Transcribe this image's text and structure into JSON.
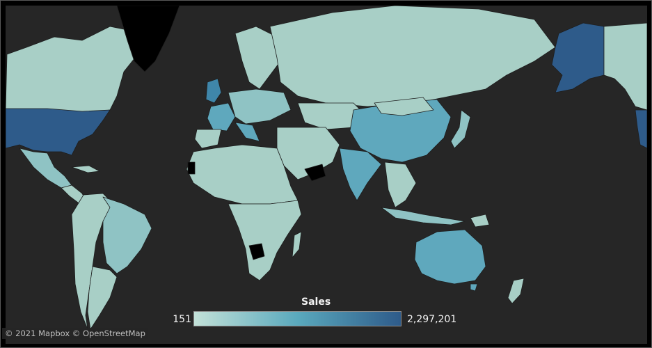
{
  "map": {
    "legend": {
      "title": "Sales",
      "min_label": "151",
      "max_label": "2,297,201",
      "ramp_colors": [
        "#c2e1d8",
        "#5aa9bd",
        "#2e5b8a"
      ]
    },
    "attribution": "© 2021 Mapbox © OpenStreetMap",
    "colors": {
      "background": "#262626",
      "low": "#a8cfc6",
      "mid_low": "#8fc3c4",
      "mid": "#5fa8bd",
      "high": "#3f86aa",
      "top": "#2e5b8a",
      "no_data": "#000000"
    }
  }
}
